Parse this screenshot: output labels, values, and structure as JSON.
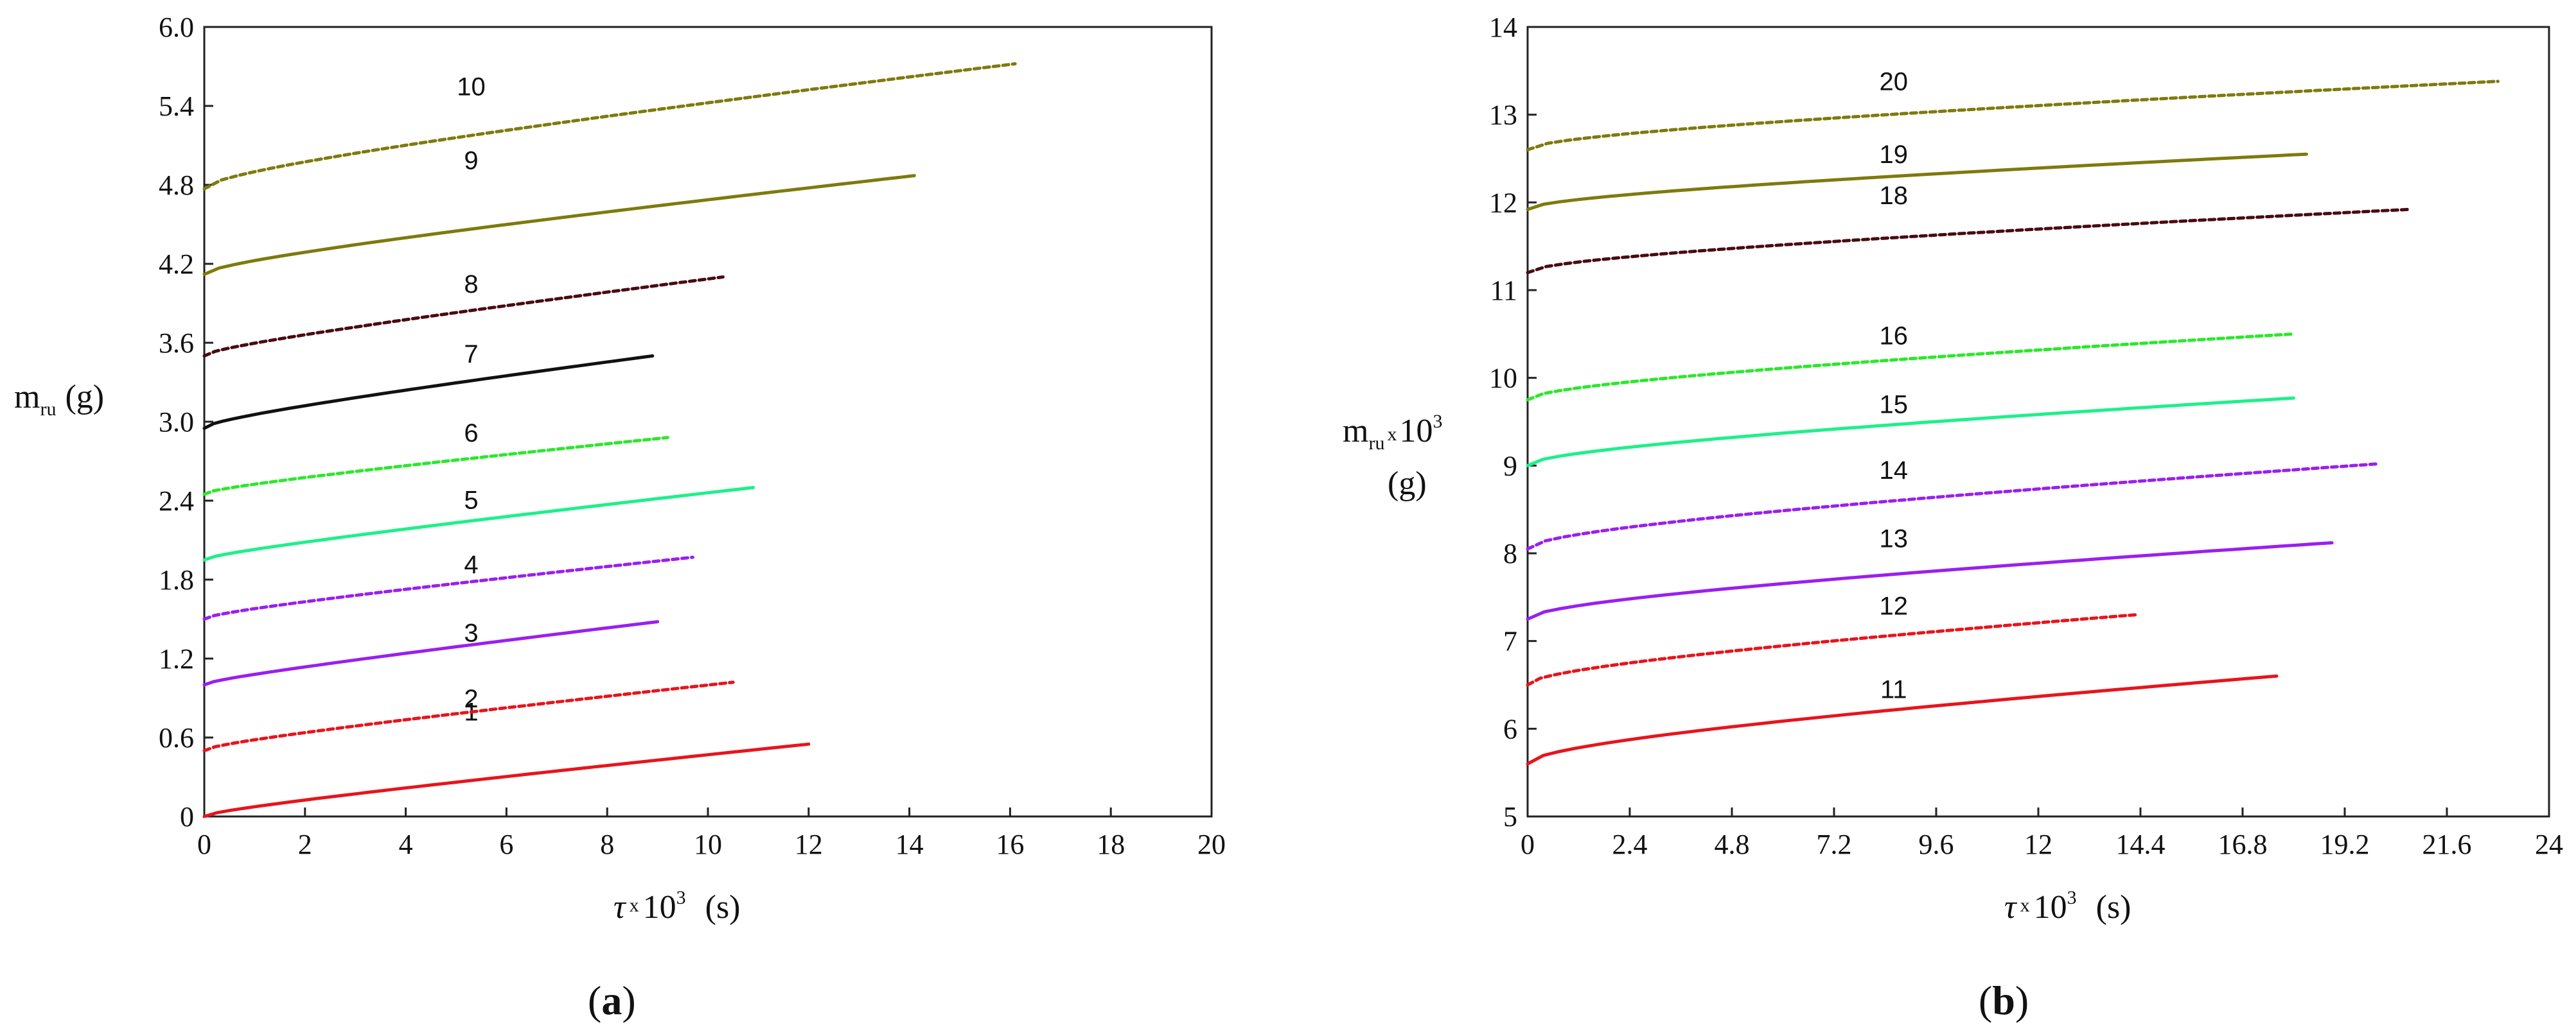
{
  "chart_data": [
    {
      "type": "line",
      "panel_label": {
        "open": "(",
        "letter": "a",
        "close": ")"
      },
      "xlabel": {
        "sym": "τ",
        "times": "x",
        "base": "10",
        "exp": "3",
        "unit": "(s)"
      },
      "ylabel": {
        "main": "m",
        "sub": "ru",
        "unit": "(g)"
      },
      "xlim": [
        0,
        20
      ],
      "ylim": [
        0,
        6.0
      ],
      "xticks": [
        0,
        2,
        4,
        6,
        8,
        10,
        12,
        14,
        16,
        18,
        20
      ],
      "xtick_labels": [
        "0",
        "2",
        "4",
        "6",
        "8",
        "10",
        "12",
        "14",
        "16",
        "18",
        "20"
      ],
      "yticks": [
        0,
        0.6,
        1.2,
        1.8,
        2.4,
        3.0,
        3.6,
        4.2,
        4.8,
        5.4,
        6.0
      ],
      "ytick_labels": [
        "0",
        "0.6",
        "1.2",
        "1.8",
        "2.4",
        "3.0",
        "3.6",
        "4.2",
        "4.8",
        "5.4",
        "6.0"
      ],
      "series": [
        {
          "name": "1",
          "color": "#e8141c",
          "style": "solid",
          "x0": 0,
          "x1": 12,
          "y0": 0.0,
          "y1": 0.55,
          "curve": 0.25,
          "label_at": [
            5.3,
            0.73
          ]
        },
        {
          "name": "2",
          "color": "#e8141c",
          "style": "dashed",
          "x0": 0,
          "x1": 10.5,
          "y0": 0.5,
          "y1": 1.02,
          "curve": 0.3,
          "label_at": [
            5.3,
            0.83
          ]
        },
        {
          "name": "3",
          "color": "#9a1ff0",
          "style": "solid",
          "x0": 0,
          "x1": 9,
          "y0": 1.0,
          "y1": 1.48,
          "curve": 0.25,
          "label_at": [
            5.3,
            1.33
          ]
        },
        {
          "name": "4",
          "color": "#9a1ff0",
          "style": "dashed",
          "x0": 0,
          "x1": 9.7,
          "y0": 1.5,
          "y1": 1.97,
          "curve": 0.3,
          "label_at": [
            5.3,
            1.85
          ]
        },
        {
          "name": "5",
          "color": "#1ef08a",
          "style": "solid",
          "x0": 0,
          "x1": 10.9,
          "y0": 1.95,
          "y1": 2.5,
          "curve": 0.25,
          "label_at": [
            5.3,
            2.34
          ]
        },
        {
          "name": "6",
          "color": "#2be82b",
          "style": "dashed",
          "x0": 0,
          "x1": 9.2,
          "y0": 2.45,
          "y1": 2.88,
          "curve": 0.3,
          "label_at": [
            5.3,
            2.85
          ]
        },
        {
          "name": "7",
          "color": "#111111",
          "style": "solid",
          "x0": 0,
          "x1": 8.9,
          "y0": 2.95,
          "y1": 3.5,
          "curve": 0.35,
          "label_at": [
            5.3,
            3.45
          ]
        },
        {
          "name": "8",
          "color": "#4a0a12",
          "style": "dashed",
          "x0": 0,
          "x1": 10.3,
          "y0": 3.5,
          "y1": 4.1,
          "curve": 0.3,
          "label_at": [
            5.3,
            3.98
          ]
        },
        {
          "name": "9",
          "color": "#7f7a0c",
          "style": "solid",
          "x0": 0,
          "x1": 14.1,
          "y0": 4.12,
          "y1": 4.87,
          "curve": 0.35,
          "label_at": [
            5.3,
            4.92
          ]
        },
        {
          "name": "10",
          "color": "#7f7a0c",
          "style": "dashed",
          "x0": 0,
          "x1": 16.1,
          "y0": 4.77,
          "y1": 5.72,
          "curve": 0.4,
          "label_at": [
            5.3,
            5.48
          ]
        }
      ]
    },
    {
      "type": "line",
      "panel_label": {
        "open": "(",
        "letter": "b",
        "close": ")"
      },
      "xlabel": {
        "sym": "τ",
        "times": "x",
        "base": "10",
        "exp": "3",
        "unit": "(s)"
      },
      "ylabel": {
        "main": "m",
        "sub": "ru",
        "times": "x",
        "base": "10",
        "exp": "3",
        "unit": "(g)"
      },
      "xlim": [
        0,
        24
      ],
      "ylim": [
        5,
        14
      ],
      "xticks": [
        0,
        2.4,
        4.8,
        7.2,
        9.6,
        12,
        14.4,
        16.8,
        19.2,
        21.6,
        24
      ],
      "xtick_labels": [
        "0",
        "2.4",
        "4.8",
        "7.2",
        "9.6",
        "12",
        "14.4",
        "16.8",
        "19.2",
        "21.6",
        "24"
      ],
      "yticks": [
        5,
        6,
        7,
        8,
        9,
        10,
        11,
        12,
        13,
        14
      ],
      "ytick_labels": [
        "5",
        "6",
        "7",
        "8",
        "9",
        "10",
        "11",
        "12",
        "13",
        "14"
      ],
      "series": [
        {
          "name": "11",
          "color": "#e8141c",
          "style": "solid",
          "x0": 0,
          "x1": 17.6,
          "y0": 5.6,
          "y1": 6.6,
          "curve": 0.6,
          "label_at": [
            8.6,
            6.35
          ]
        },
        {
          "name": "12",
          "color": "#e8141c",
          "style": "dashed",
          "x0": 0,
          "x1": 14.3,
          "y0": 6.5,
          "y1": 7.3,
          "curve": 0.6,
          "label_at": [
            8.6,
            7.3
          ]
        },
        {
          "name": "13",
          "color": "#9a1ff0",
          "style": "solid",
          "x0": 0,
          "x1": 18.9,
          "y0": 7.25,
          "y1": 8.12,
          "curve": 0.6,
          "label_at": [
            8.6,
            8.07
          ]
        },
        {
          "name": "14",
          "color": "#9a1ff0",
          "style": "dashed",
          "x0": 0,
          "x1": 20.0,
          "y0": 8.05,
          "y1": 9.02,
          "curve": 0.6,
          "label_at": [
            8.6,
            8.85
          ]
        },
        {
          "name": "15",
          "color": "#1ef08a",
          "style": "solid",
          "x0": 0,
          "x1": 18.0,
          "y0": 9.0,
          "y1": 9.77,
          "curve": 0.6,
          "label_at": [
            8.6,
            9.6
          ]
        },
        {
          "name": "16",
          "color": "#2be82b",
          "style": "dashed",
          "x0": 0,
          "x1": 18.0,
          "y0": 9.75,
          "y1": 10.5,
          "curve": 0.6,
          "label_at": [
            8.6,
            10.38
          ]
        },
        {
          "name": "18",
          "color": "#4a0a12",
          "style": "dashed",
          "x0": 0,
          "x1": 20.7,
          "y0": 11.2,
          "y1": 11.92,
          "curve": 0.6,
          "label_at": [
            8.6,
            11.98
          ]
        },
        {
          "name": "19",
          "color": "#7f7a0c",
          "style": "solid",
          "x0": 0,
          "x1": 18.3,
          "y0": 11.92,
          "y1": 12.55,
          "curve": 0.6,
          "label_at": [
            8.6,
            12.45
          ]
        },
        {
          "name": "20",
          "color": "#7f7a0c",
          "style": "dashed",
          "x0": 0,
          "x1": 22.8,
          "y0": 12.6,
          "y1": 13.38,
          "curve": 0.6,
          "label_at": [
            8.6,
            13.28
          ]
        }
      ]
    }
  ]
}
